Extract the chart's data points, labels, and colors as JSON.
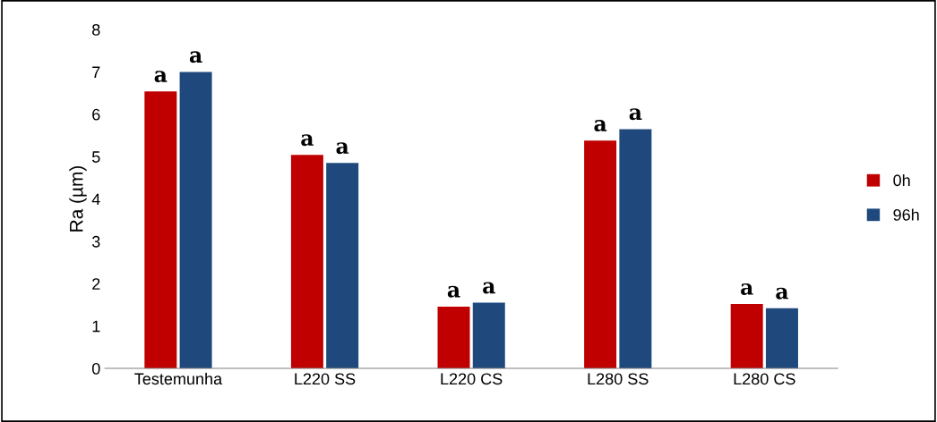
{
  "chart_data": {
    "type": "bar",
    "ylabel": "Ra (µm)",
    "categories": [
      "Testemunha",
      "L220 SS",
      "L220 CS",
      "L280 SS",
      "L280 CS"
    ],
    "series": [
      {
        "name": "0h",
        "color": "#c00000",
        "values": [
          6.54,
          5.04,
          1.46,
          5.38,
          1.52
        ],
        "value_labels": [
          "a",
          "a",
          "a",
          "a",
          "a"
        ]
      },
      {
        "name": "96h",
        "color": "#1f497d",
        "values": [
          7.0,
          4.85,
          1.55,
          5.65,
          1.42
        ],
        "value_labels": [
          "a",
          "a",
          "a",
          "a",
          "a"
        ]
      }
    ],
    "ylim": [
      0,
      8
    ],
    "yticks": [
      0,
      1,
      2,
      3,
      4,
      5,
      6,
      7,
      8
    ],
    "grid": false,
    "legend": "right"
  }
}
